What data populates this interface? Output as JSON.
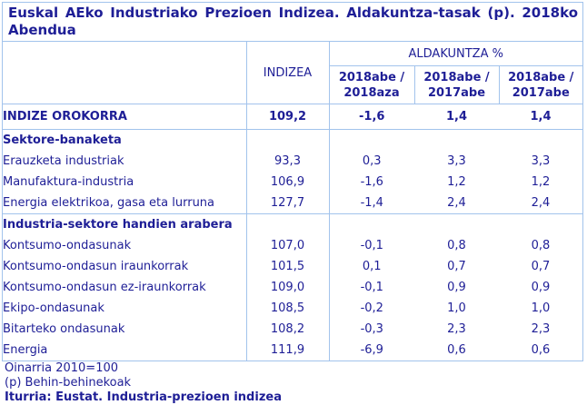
{
  "title": "Euskal AEko Industriako Prezioen Indizea. Aldakuntza-tasak (p). 2018ko Abendua",
  "table": {
    "col_headers": {
      "label": "",
      "indizea": "INDIZEA",
      "aldakuntza_group": "ALDAKUNTZA %",
      "sub": [
        "2018abe / 2018aza",
        "2018abe / 2017abe",
        "2018abe / 2017abe"
      ]
    },
    "rows": [
      {
        "label": "INDIZE OROKORRA",
        "style": "total",
        "indent": 0,
        "section_start": false,
        "values": [
          "109,2",
          "-1,6",
          "1,4",
          "1,4"
        ]
      },
      {
        "label": "Sektore-banaketa",
        "style": "section",
        "indent": 0,
        "section_start": true,
        "values": [
          "",
          "",
          "",
          ""
        ]
      },
      {
        "label": "Erauzketa industriak",
        "style": "data",
        "indent": 1,
        "section_start": false,
        "values": [
          "93,3",
          "0,3",
          "3,3",
          "3,3"
        ]
      },
      {
        "label": "Manufaktura-industria",
        "style": "data",
        "indent": 1,
        "section_start": false,
        "values": [
          "106,9",
          "-1,6",
          "1,2",
          "1,2"
        ]
      },
      {
        "label": "Energia elektrikoa, gasa eta lurruna",
        "style": "data",
        "indent": 1,
        "section_start": false,
        "values": [
          "127,7",
          "-1,4",
          "2,4",
          "2,4"
        ]
      },
      {
        "label": "Industria-sektore handien arabera",
        "style": "section",
        "indent": 0,
        "section_start": true,
        "values": [
          "",
          "",
          "",
          ""
        ]
      },
      {
        "label": "Kontsumo-ondasunak",
        "style": "data",
        "indent": 1,
        "section_start": false,
        "values": [
          "107,0",
          "-0,1",
          "0,8",
          "0,8"
        ]
      },
      {
        "label": "Kontsumo-ondasun iraunkorrak",
        "style": "data",
        "indent": 2,
        "section_start": false,
        "values": [
          "101,5",
          "0,1",
          "0,7",
          "0,7"
        ]
      },
      {
        "label": "Kontsumo-ondasun ez-iraunkorrak",
        "style": "data",
        "indent": 2,
        "section_start": false,
        "values": [
          "109,0",
          "-0,1",
          "0,9",
          "0,9"
        ]
      },
      {
        "label": "Ekipo-ondasunak",
        "style": "data",
        "indent": 1,
        "section_start": false,
        "values": [
          "108,5",
          "-0,2",
          "1,0",
          "1,0"
        ]
      },
      {
        "label": "Bitarteko ondasunak",
        "style": "data",
        "indent": 1,
        "section_start": false,
        "values": [
          "108,2",
          "-0,3",
          "2,3",
          "2,3"
        ]
      },
      {
        "label": "Energia",
        "style": "data",
        "indent": 1,
        "section_start": false,
        "values": [
          "111,9",
          "-6,9",
          "0,6",
          "0,6"
        ]
      }
    ]
  },
  "footnotes": [
    "Oinarria 2010=100",
    "(p) Behin-behinekoak"
  ],
  "source": "Iturria: Eustat. Industria-prezioen indizea",
  "colors": {
    "text_navy": "#1e1e96",
    "border_blue": "#a2c3ec",
    "background": "#ffffff"
  }
}
